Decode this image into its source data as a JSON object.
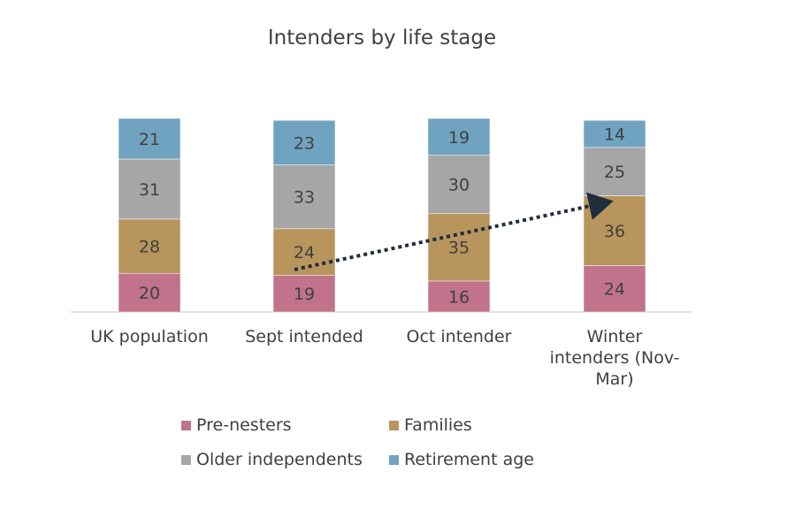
{
  "chart_data": {
    "type": "stacked-bar",
    "title": "Intenders by life stage",
    "categories": [
      "UK population",
      "Sept intended",
      "Oct intender",
      "Winter intenders (Nov-Mar)"
    ],
    "series": [
      {
        "name": "Pre-nesters",
        "color": "#c0738b",
        "values": [
          20,
          19,
          16,
          24
        ]
      },
      {
        "name": "Families",
        "color": "#b8955d",
        "values": [
          28,
          24,
          35,
          36
        ]
      },
      {
        "name": "Older independents",
        "color": "#a6a6a6",
        "values": [
          31,
          33,
          30,
          25
        ]
      },
      {
        "name": "Retirement age",
        "color": "#70a3bf",
        "values": [
          21,
          23,
          19,
          14
        ]
      }
    ]
  }
}
